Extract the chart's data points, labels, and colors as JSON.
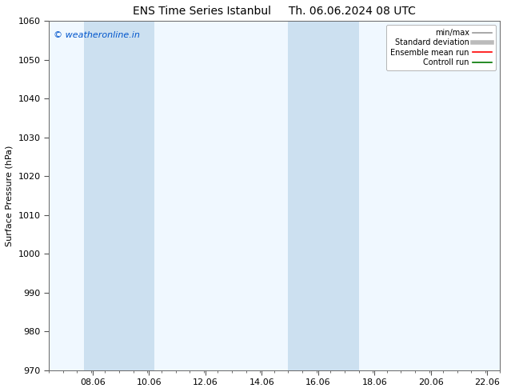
{
  "title_left": "ENS Time Series Istanbul",
  "title_right": "Th. 06.06.2024 08 UTC",
  "ylabel": "Surface Pressure (hPa)",
  "ylim": [
    970,
    1060
  ],
  "yticks": [
    970,
    980,
    990,
    1000,
    1010,
    1020,
    1030,
    1040,
    1050,
    1060
  ],
  "xlim": [
    6.5,
    22.5
  ],
  "xticks": [
    8.06,
    10.06,
    12.06,
    14.06,
    16.06,
    18.06,
    20.06,
    22.06
  ],
  "xlabel_labels": [
    "08.06",
    "10.06",
    "12.06",
    "14.06",
    "16.06",
    "18.06",
    "20.06",
    "22.06"
  ],
  "watermark": "© weatheronline.in",
  "watermark_color": "#0055cc",
  "bg_color": "#ffffff",
  "plot_bg_color": "#f0f8ff",
  "shaded_regions": [
    {
      "xmin": 7.75,
      "xmax": 10.25,
      "color": "#cce0f0",
      "alpha": 1.0
    },
    {
      "xmin": 15.0,
      "xmax": 17.5,
      "color": "#cce0f0",
      "alpha": 1.0
    }
  ],
  "legend_items": [
    {
      "label": "min/max",
      "color": "#999999",
      "lw": 1.2
    },
    {
      "label": "Standard deviation",
      "color": "#bbbbbb",
      "lw": 4.0
    },
    {
      "label": "Ensemble mean run",
      "color": "#ff0000",
      "lw": 1.2
    },
    {
      "label": "Controll run",
      "color": "#007700",
      "lw": 1.2
    }
  ],
  "title_fontsize": 10,
  "ylabel_fontsize": 8,
  "tick_fontsize": 8,
  "legend_fontsize": 7,
  "watermark_fontsize": 8
}
